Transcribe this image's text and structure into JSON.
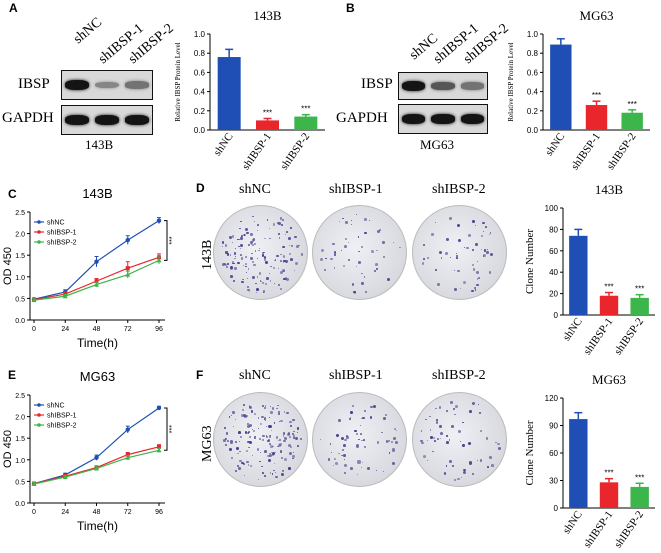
{
  "panels": {
    "A": "A",
    "B": "B",
    "C": "C",
    "D": "D",
    "E": "E",
    "F": "F"
  },
  "blots": [
    {
      "lanes": [
        "shNC",
        "shIBSP-1",
        "shIBSP-2"
      ],
      "protein": "IBSP",
      "control": "GAPDH",
      "caption": "143B",
      "ibsp_intensity": [
        0.95,
        0.35,
        0.45
      ],
      "gapdh_intensity": [
        0.95,
        0.95,
        0.95
      ]
    },
    {
      "lanes": [
        "shNC",
        "shIBSP-1",
        "shIBSP-2"
      ],
      "protein": "IBSP",
      "control": "GAPDH",
      "caption": "MG63",
      "ibsp_intensity": [
        0.95,
        0.6,
        0.45
      ],
      "gapdh_intensity": [
        0.95,
        0.95,
        0.95
      ]
    }
  ],
  "colony": [
    {
      "row_label": "143B",
      "headers": [
        "shNC",
        "shIBSP-1",
        "shIBSP-2"
      ],
      "colony_density": [
        0.9,
        0.2,
        0.25
      ]
    },
    {
      "row_label": "MG63",
      "headers": [
        "shNC",
        "shIBSP-1",
        "shIBSP-2"
      ],
      "colony_density": [
        1.0,
        0.3,
        0.3
      ]
    }
  ],
  "colors": {
    "shNC": "#1f4fb4",
    "shIBSP-1": "#e8262b",
    "shIBSP-2": "#3cb54a"
  },
  "chart_data": [
    {
      "id": "A-bar",
      "type": "bar",
      "title": "143B",
      "ylabel": "Relative IBSP Protein Level",
      "categories": [
        "shNC",
        "shIBSP-1",
        "shIBSP-2"
      ],
      "values": [
        0.76,
        0.1,
        0.14
      ],
      "errors": [
        0.08,
        0.02,
        0.02
      ],
      "sig": [
        "",
        "***",
        "***"
      ],
      "ylim": [
        0,
        1.0
      ],
      "yticks": [
        "0.0",
        "0.2",
        "0.4",
        "0.6",
        "0.8",
        "1.0"
      ]
    },
    {
      "id": "B-bar",
      "type": "bar",
      "title": "MG63",
      "ylabel": "Relative IBSP Protein Level",
      "categories": [
        "shNC",
        "shIBSP-1",
        "shIBSP-2"
      ],
      "values": [
        0.89,
        0.26,
        0.18
      ],
      "errors": [
        0.06,
        0.04,
        0.03
      ],
      "sig": [
        "",
        "***",
        "***"
      ],
      "ylim": [
        0,
        1.0
      ],
      "yticks": [
        "0.0",
        "0.2",
        "0.4",
        "0.6",
        "0.8",
        "1.0"
      ]
    },
    {
      "id": "C-line",
      "type": "line",
      "title": "143B",
      "xlabel": "Time(h)",
      "ylabel": "OD 450",
      "x": [
        0,
        24,
        48,
        72,
        96
      ],
      "xticks": [
        "0",
        "24",
        "48",
        "72",
        "96"
      ],
      "yticks": [
        "0.0",
        "0.5",
        "1.0",
        "1.5",
        "2.0",
        "2.5"
      ],
      "ylim": [
        0,
        2.5
      ],
      "sig": "***",
      "series": [
        {
          "name": "shNC",
          "values": [
            0.48,
            0.65,
            1.35,
            1.85,
            2.3
          ],
          "errors": [
            0.03,
            0.05,
            0.12,
            0.1,
            0.07
          ]
        },
        {
          "name": "shIBSP-1",
          "values": [
            0.47,
            0.6,
            0.9,
            1.2,
            1.45
          ],
          "errors": [
            0.03,
            0.05,
            0.06,
            0.15,
            0.08
          ]
        },
        {
          "name": "shIBSP-2",
          "values": [
            0.46,
            0.55,
            0.82,
            1.05,
            1.38
          ],
          "errors": [
            0.03,
            0.04,
            0.06,
            0.08,
            0.08
          ]
        }
      ]
    },
    {
      "id": "D-bar",
      "type": "bar",
      "title": "143B",
      "ylabel": "Clone  Number",
      "categories": [
        "shNC",
        "shIBSP-1",
        "shIBSP-2"
      ],
      "values": [
        74,
        18,
        16
      ],
      "errors": [
        6,
        3,
        3
      ],
      "sig": [
        "",
        "***",
        "***"
      ],
      "ylim": [
        0,
        100
      ],
      "yticks": [
        "0",
        "20",
        "40",
        "60",
        "80",
        "100"
      ]
    },
    {
      "id": "E-line",
      "type": "line",
      "title": "MG63",
      "xlabel": "Time(h)",
      "ylabel": "OD 450",
      "x": [
        0,
        24,
        48,
        72,
        96
      ],
      "xticks": [
        "0",
        "24",
        "48",
        "72",
        "96"
      ],
      "yticks": [
        "0.0",
        "0.5",
        "1.0",
        "1.5",
        "2.0",
        "2.5"
      ],
      "ylim": [
        0,
        2.5
      ],
      "sig": "***",
      "series": [
        {
          "name": "shNC",
          "values": [
            0.45,
            0.65,
            1.05,
            1.7,
            2.2
          ],
          "errors": [
            0.03,
            0.04,
            0.06,
            0.08,
            0.04
          ]
        },
        {
          "name": "shIBSP-1",
          "values": [
            0.45,
            0.62,
            0.82,
            1.12,
            1.3
          ],
          "errors": [
            0.03,
            0.04,
            0.04,
            0.05,
            0.05
          ]
        },
        {
          "name": "shIBSP-2",
          "values": [
            0.44,
            0.6,
            0.8,
            1.05,
            1.22
          ],
          "errors": [
            0.03,
            0.04,
            0.04,
            0.05,
            0.05
          ]
        }
      ]
    },
    {
      "id": "F-bar",
      "type": "bar",
      "title": "MG63",
      "ylabel": "Clone  Number",
      "categories": [
        "shNC",
        "shIBSP-1",
        "shIBSP-2"
      ],
      "values": [
        97,
        28,
        23
      ],
      "errors": [
        7,
        4,
        4
      ],
      "sig": [
        "",
        "***",
        "***"
      ],
      "ylim": [
        0,
        120
      ],
      "yticks": [
        "0",
        "30",
        "60",
        "90",
        "120"
      ]
    }
  ]
}
